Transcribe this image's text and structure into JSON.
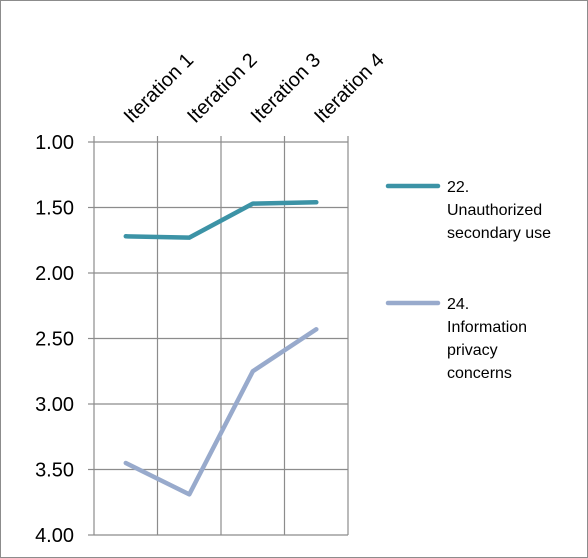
{
  "chart_data": {
    "type": "line",
    "title": "",
    "xlabel": "",
    "ylabel": "",
    "categories": [
      "Iteration 1",
      "Iteration 2",
      "Iteration 3",
      "Iteration 4"
    ],
    "y_axis": {
      "range": [
        1.0,
        4.0
      ],
      "reversed": true,
      "major_step": 0.5,
      "tick_labels": [
        "1.00",
        "1.50",
        "2.00",
        "2.50",
        "3.00",
        "3.50",
        "4.00"
      ]
    },
    "x_axis_labels_position": "top",
    "grid": true,
    "legend": {
      "position": "right"
    },
    "series": [
      {
        "name": "22. Unauthorized secondary use",
        "legend_lines": [
          "22.",
          "Unauthorized",
          "secondary use"
        ],
        "color": "#3c93a6",
        "values": [
          1.72,
          1.73,
          1.47,
          1.46
        ]
      },
      {
        "name": "24. Information privacy concerns",
        "legend_lines": [
          "24.",
          "Information",
          "privacy",
          "concerns"
        ],
        "color": "#98aacc",
        "values": [
          3.45,
          3.69,
          2.75,
          2.43
        ]
      }
    ]
  }
}
